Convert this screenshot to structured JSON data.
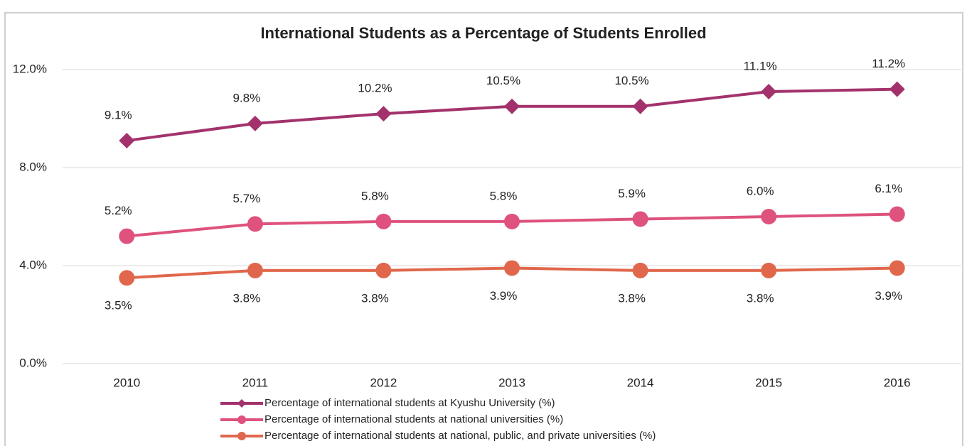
{
  "chart_data": {
    "type": "line",
    "title": "International Students as a Percentage of Students Enrolled",
    "categories": [
      "2010",
      "2011",
      "2012",
      "2013",
      "2014",
      "2015",
      "2016"
    ],
    "series": [
      {
        "name": "Percentage of international students at Kyushu University (%)",
        "color": "#a3326c",
        "marker": "diamond",
        "values": [
          9.1,
          9.8,
          10.2,
          10.5,
          10.5,
          11.1,
          11.2
        ],
        "value_labels": [
          "9.1%",
          "9.8%",
          "10.2%",
          "10.5%",
          "10.5%",
          "11.1%",
          "11.2%"
        ],
        "label_position": "above"
      },
      {
        "name": "Percentage of international students at national universities (%)",
        "color": "#de527d",
        "marker": "circle",
        "values": [
          5.2,
          5.7,
          5.8,
          5.8,
          5.9,
          6.0,
          6.1
        ],
        "value_labels": [
          "5.2%",
          "5.7%",
          "5.8%",
          "5.8%",
          "5.9%",
          "6.0%",
          "6.1%"
        ],
        "label_position": "above"
      },
      {
        "name": "Percentage of international students at national, public, and private universities (%)",
        "color": "#e0674c",
        "marker": "circle",
        "values": [
          3.5,
          3.8,
          3.8,
          3.9,
          3.8,
          3.8,
          3.9
        ],
        "value_labels": [
          "3.5%",
          "3.8%",
          "3.8%",
          "3.9%",
          "3.8%",
          "3.8%",
          "3.9%"
        ],
        "label_position": "below"
      }
    ],
    "ylim": [
      0,
      12
    ],
    "yticks": [
      {
        "value": 0,
        "label": "0.0%"
      },
      {
        "value": 4,
        "label": "4.0%"
      },
      {
        "value": 8,
        "label": "8.0%"
      },
      {
        "value": 12,
        "label": "12.0%"
      }
    ],
    "grid": true,
    "legend": "bottom"
  }
}
